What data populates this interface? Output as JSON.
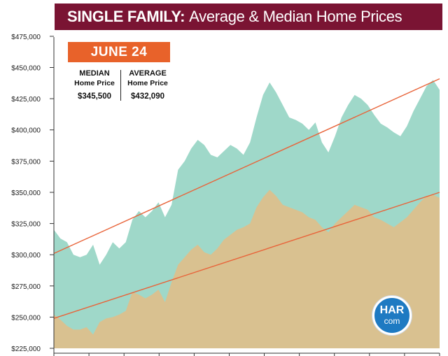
{
  "title": {
    "bold": "SINGLE FAMILY:",
    "rest": "Average & Median Home Prices"
  },
  "date_badge": "JUNE 24",
  "median": {
    "label1": "MEDIAN",
    "label2": "Home Price",
    "value": "$345,500"
  },
  "average": {
    "label1": "AVERAGE",
    "label2": "Home Price",
    "value": "$432,090"
  },
  "logo": {
    "line1": "HAR",
    "line2": "com"
  },
  "colors": {
    "title_bg": "#7a1433",
    "badge": "#e8622a",
    "average_area": "#9fd8c9",
    "median_area": "#d9c190",
    "trend": "#e8643a",
    "logo": "#1e7ac2"
  },
  "chart_data": {
    "type": "area",
    "ytick_labels": [
      "$225,000",
      "$250,000",
      "$275,000",
      "$300,000",
      "$325,000",
      "$350,000",
      "$375,000",
      "$400,000",
      "$425,000",
      "$450,000",
      "$475,000"
    ],
    "ylim": [
      225000,
      480000
    ],
    "xlim": [
      0,
      60
    ],
    "grid": false,
    "series": [
      {
        "name": "AVERAGE",
        "values": [
          320000,
          313000,
          310000,
          300000,
          298000,
          300000,
          308000,
          292000,
          300000,
          310000,
          305000,
          310000,
          328000,
          335000,
          330000,
          335000,
          342000,
          330000,
          340000,
          368000,
          375000,
          385000,
          392000,
          388000,
          380000,
          378000,
          383000,
          388000,
          385000,
          380000,
          390000,
          410000,
          428000,
          438000,
          430000,
          420000,
          410000,
          408000,
          405000,
          400000,
          406000,
          390000,
          382000,
          395000,
          410000,
          420000,
          428000,
          425000,
          420000,
          412000,
          405000,
          402000,
          398000,
          395000,
          403000,
          415000,
          425000,
          435000,
          440000,
          432090
        ]
      },
      {
        "name": "MEDIAN",
        "values": [
          252000,
          248000,
          243000,
          240000,
          240000,
          242000,
          236000,
          246000,
          249000,
          250000,
          252000,
          255000,
          270000,
          268000,
          265000,
          268000,
          272000,
          262000,
          278000,
          292000,
          298000,
          304000,
          308000,
          302000,
          300000,
          305000,
          312000,
          316000,
          320000,
          322000,
          325000,
          338000,
          346000,
          352000,
          347000,
          340000,
          338000,
          336000,
          334000,
          330000,
          328000,
          322000,
          318000,
          325000,
          330000,
          335000,
          340000,
          338000,
          336000,
          330000,
          328000,
          325000,
          322000,
          326000,
          330000,
          336000,
          342000,
          347000,
          348000,
          345500
        ]
      }
    ],
    "trendlines": [
      {
        "series": "AVERAGE",
        "start": 301000,
        "end": 441000
      },
      {
        "series": "MEDIAN",
        "start": 249000,
        "end": 350000
      }
    ]
  }
}
